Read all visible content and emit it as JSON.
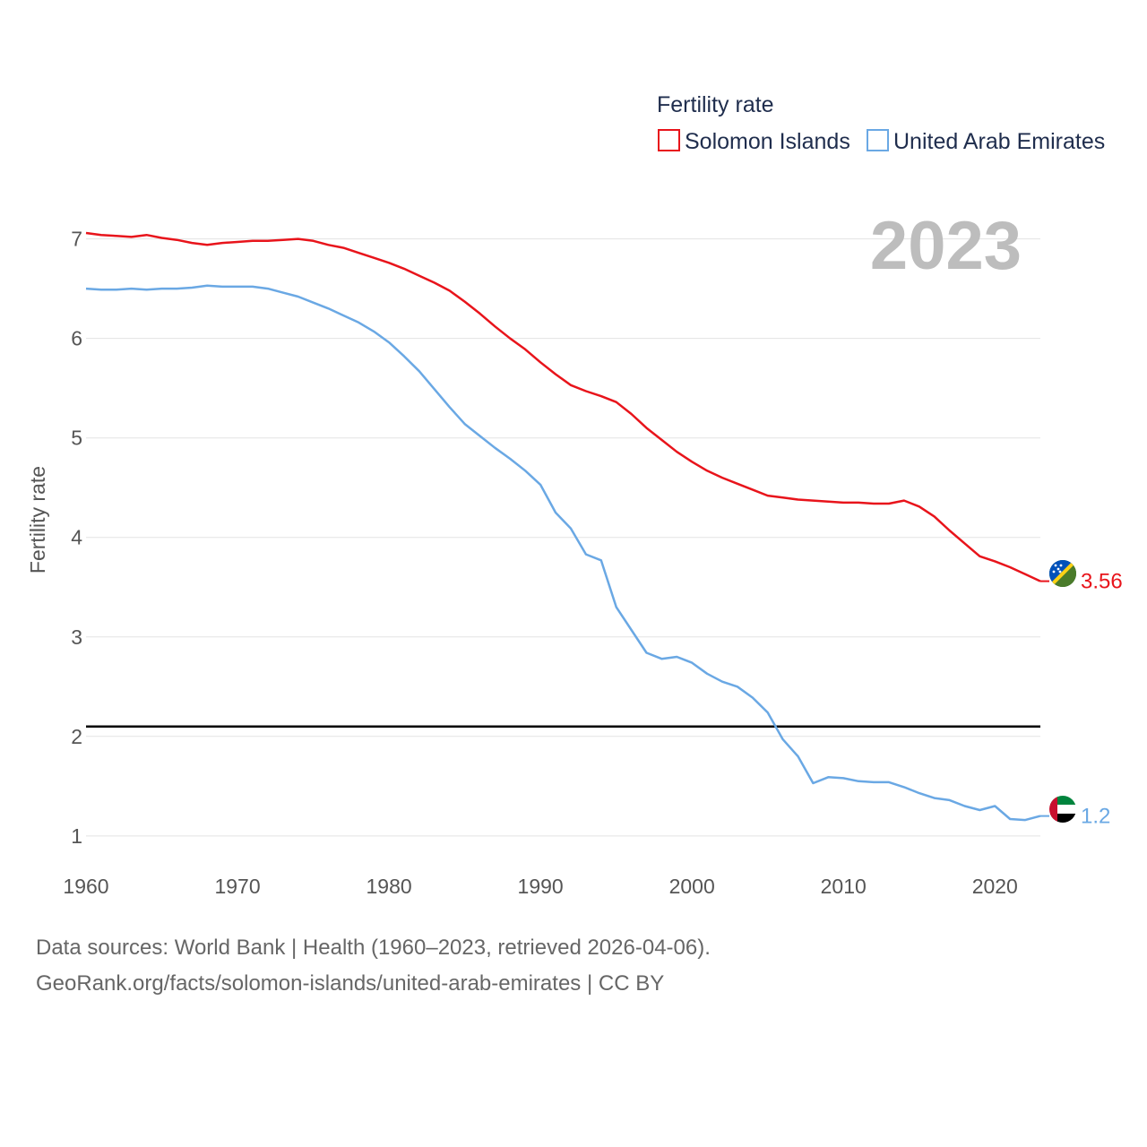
{
  "chart_data": {
    "type": "line",
    "legend_title": "Fertility rate",
    "ylabel": "Fertility rate",
    "xlabel": "",
    "year_badge": "2023",
    "x_range": [
      1960,
      2023
    ],
    "ylim": [
      0.35,
      7.6
    ],
    "x_ticks": [
      1960,
      1970,
      1980,
      1990,
      2000,
      2010,
      2020
    ],
    "y_ticks": [
      1,
      2,
      3,
      4,
      5,
      6,
      7
    ],
    "reference_line": 2.1,
    "series": [
      {
        "name": "Solomon Islands",
        "color": "#e8141b",
        "end_label": "3.56",
        "flag": "solomon-islands-flag",
        "values": [
          7.06,
          7.04,
          7.03,
          7.02,
          7.04,
          7.01,
          6.99,
          6.96,
          6.94,
          6.96,
          6.97,
          6.98,
          6.98,
          6.99,
          7.0,
          6.98,
          6.94,
          6.91,
          6.86,
          6.81,
          6.76,
          6.7,
          6.63,
          6.56,
          6.48,
          6.37,
          6.25,
          6.12,
          6.0,
          5.89,
          5.76,
          5.64,
          5.53,
          5.47,
          5.42,
          5.36,
          5.24,
          5.1,
          4.98,
          4.86,
          4.76,
          4.67,
          4.6,
          4.54,
          4.48,
          4.42,
          4.4,
          4.38,
          4.37,
          4.36,
          4.35,
          4.35,
          4.34,
          4.34,
          4.37,
          4.31,
          4.21,
          4.07,
          3.94,
          3.81,
          3.76,
          3.7,
          3.63,
          3.56
        ]
      },
      {
        "name": "United Arab Emirates",
        "color": "#6aa8e4",
        "end_label": "1.2",
        "flag": "uae-flag",
        "values": [
          6.5,
          6.49,
          6.49,
          6.5,
          6.49,
          6.5,
          6.5,
          6.51,
          6.53,
          6.52,
          6.52,
          6.52,
          6.5,
          6.46,
          6.42,
          6.36,
          6.3,
          6.23,
          6.16,
          6.07,
          5.96,
          5.82,
          5.67,
          5.49,
          5.31,
          5.14,
          5.02,
          4.9,
          4.79,
          4.67,
          4.53,
          4.25,
          4.09,
          3.83,
          3.77,
          3.3,
          3.07,
          2.84,
          2.78,
          2.8,
          2.74,
          2.63,
          2.55,
          2.5,
          2.39,
          2.24,
          1.97,
          1.8,
          1.53,
          1.59,
          1.58,
          1.55,
          1.54,
          1.54,
          1.49,
          1.43,
          1.38,
          1.36,
          1.3,
          1.26,
          1.3,
          1.17,
          1.16,
          1.2
        ]
      }
    ]
  },
  "footer": {
    "source": "Data sources: World Bank | Health (1960–2023, retrieved 2026-04-06).",
    "link": "GeoRank.org/facts/solomon-islands/united-arab-emirates | CC BY"
  }
}
